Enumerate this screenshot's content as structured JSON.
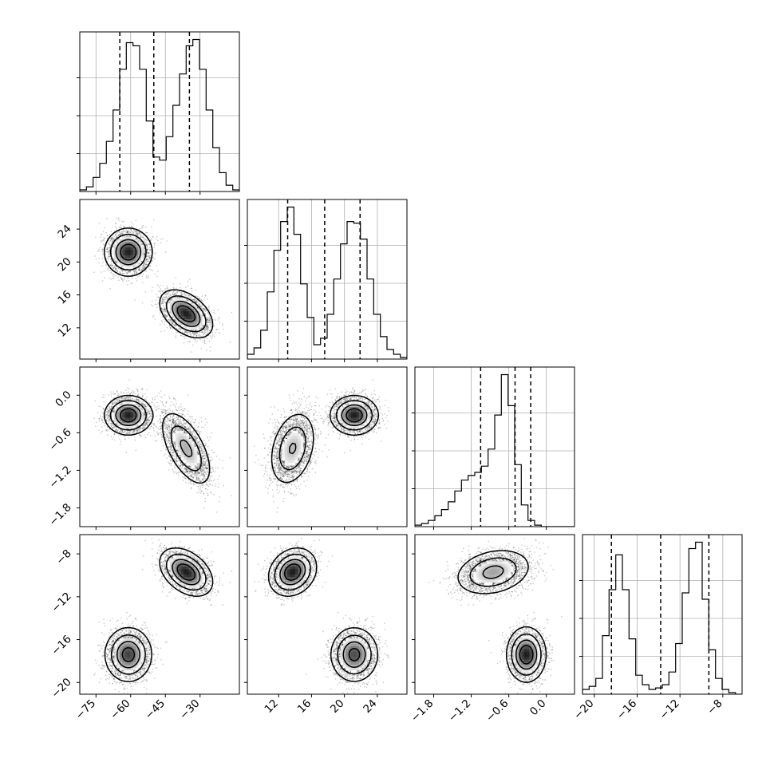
{
  "chart_data": {
    "type": "corner",
    "parameters": [
      {
        "ticks": [
          -75,
          -60,
          -45,
          -30
        ],
        "tick_labels": [
          "−75",
          "−60",
          "−45",
          "−30"
        ],
        "range": [
          -82,
          -13
        ]
      },
      {
        "ticks": [
          12,
          16,
          20,
          24
        ],
        "tick_labels": [
          "12",
          "16",
          "20",
          "24"
        ],
        "range": [
          8.2,
          27.6
        ]
      },
      {
        "ticks": [
          -1.8,
          -1.2,
          -0.6,
          0.0
        ],
        "tick_labels": [
          "−1.8",
          "−1.2",
          "−0.6",
          "0.0"
        ],
        "range": [
          -2.1,
          0.45
        ]
      },
      {
        "ticks": [
          -20,
          -16,
          -12,
          -8
        ],
        "tick_labels": [
          "−20",
          "−16",
          "−12",
          "−8"
        ],
        "range": [
          -21.1,
          -6.2
        ]
      }
    ],
    "histograms": [
      {
        "quantiles": [
          -64.7,
          -50.0,
          -34.6
        ],
        "heights": [
          0.01,
          0.03,
          0.09,
          0.18,
          0.32,
          0.52,
          0.78,
          0.95,
          0.93,
          0.78,
          0.45,
          0.22,
          0.2,
          0.35,
          0.55,
          0.75,
          0.93,
          0.97,
          0.78,
          0.52,
          0.28,
          0.12,
          0.04,
          0.01
        ]
      },
      {
        "quantiles": [
          13.1,
          17.6,
          21.9
        ],
        "heights": [
          0.03,
          0.07,
          0.18,
          0.42,
          0.68,
          0.86,
          0.95,
          0.78,
          0.47,
          0.26,
          0.09,
          0.13,
          0.28,
          0.5,
          0.72,
          0.86,
          0.85,
          0.75,
          0.5,
          0.28,
          0.14,
          0.06,
          0.03,
          0.01
        ]
      },
      {
        "quantiles": [
          -1.05,
          -0.5,
          -0.25
        ],
        "heights": [
          0.01,
          0.02,
          0.04,
          0.07,
          0.11,
          0.16,
          0.23,
          0.3,
          0.33,
          0.35,
          0.39,
          0.5,
          0.72,
          0.98,
          0.78,
          0.4,
          0.14,
          0.04,
          0.01,
          0.0,
          0.0,
          0.0,
          0.0,
          0.0
        ]
      },
      {
        "quantiles": [
          -18.4,
          -13.8,
          -9.3
        ],
        "heights": [
          0.03,
          0.05,
          0.1,
          0.37,
          0.66,
          0.88,
          0.66,
          0.35,
          0.12,
          0.06,
          0.03,
          0.04,
          0.06,
          0.14,
          0.32,
          0.64,
          0.92,
          0.96,
          0.6,
          0.28,
          0.1,
          0.03,
          0.01,
          0.0
        ]
      }
    ],
    "modes": [
      {
        "weight": 0.5,
        "mean": [
          -61.0,
          21.2,
          -0.32,
          -17.4
        ],
        "sd": [
          4.6,
          1.3,
          0.14,
          1.15
        ]
      },
      {
        "weight": 0.5,
        "mean": [
          -36.0,
          13.7,
          -0.85,
          -9.7
        ],
        "sd": [
          5.1,
          1.3,
          0.28,
          1.0
        ]
      }
    ],
    "correlations": [
      [
        [
          1,
          0,
          0,
          0
        ],
        [
          0,
          1,
          0,
          0
        ],
        [
          0,
          0,
          1,
          0
        ],
        [
          0,
          0,
          0,
          1
        ]
      ],
      [
        [
          1,
          -0.45,
          -0.6,
          -0.4
        ],
        [
          -0.45,
          1,
          0.3,
          0.2
        ],
        [
          -0.6,
          0.3,
          1,
          0.25
        ],
        [
          -0.4,
          0.2,
          0.25,
          1
        ]
      ]
    ]
  }
}
